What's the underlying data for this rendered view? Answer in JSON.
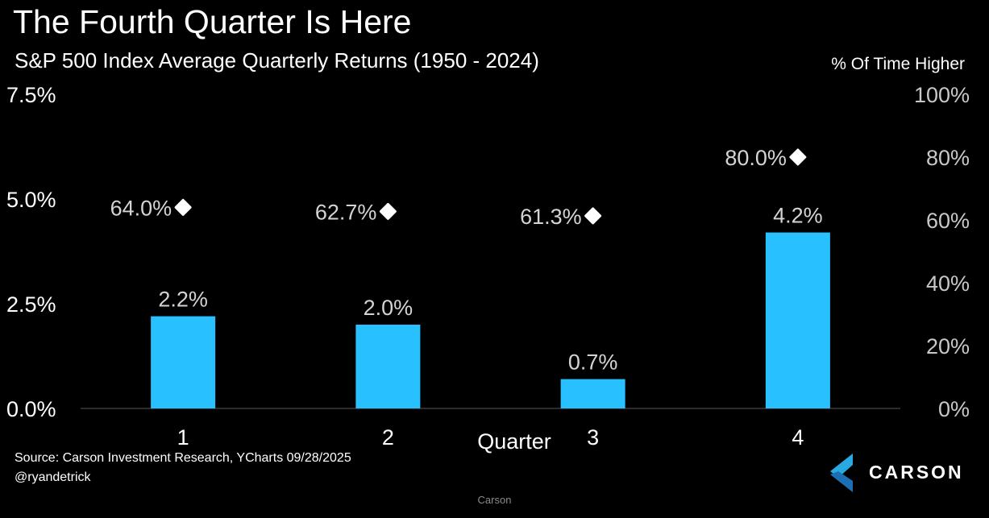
{
  "header": {
    "title": "The Fourth Quarter Is Here",
    "subtitle": "S&P 500 Index Average Quarterly Returns (1950 - 2024)"
  },
  "chart_data": {
    "type": "bar",
    "title": "The Fourth Quarter Is Here",
    "subtitle": "S&P 500 Index Average Quarterly Returns (1950 - 2024)",
    "xlabel": "Quarter",
    "categories": [
      "1",
      "2",
      "3",
      "4"
    ],
    "series": [
      {
        "values": [
          2.2,
          2.0,
          0.7,
          4.2
        ],
        "labels": [
          "2.2%",
          "2.0%",
          "0.7%",
          "4.2%"
        ],
        "axis": "left",
        "mark": "bar",
        "color": "#29c0ff"
      },
      {
        "values": [
          64.0,
          62.7,
          61.3,
          80.0
        ],
        "labels": [
          "64.0%",
          "62.7%",
          "61.3%",
          "80.0%"
        ],
        "axis": "right",
        "mark": "diamond",
        "color": "#ffffff"
      }
    ],
    "y_left": {
      "range": [
        0,
        7.5
      ],
      "ticks": [
        0,
        2.5,
        5.0,
        7.5
      ],
      "tick_labels": [
        "0.0%",
        "2.5%",
        "5.0%",
        "7.5%"
      ]
    },
    "y_right": {
      "label": "% Of Time Higher",
      "range": [
        0,
        100
      ],
      "ticks": [
        0,
        20,
        40,
        60,
        80,
        100
      ],
      "tick_labels": [
        "0%",
        "20%",
        "40%",
        "60%",
        "80%",
        "100%"
      ]
    },
    "grid": false,
    "legend": "none"
  },
  "footer": {
    "source": "Source: Carson Investment Research, YCharts 09/28/2025",
    "handle": "@ryandetrick",
    "center_text": "Carson"
  },
  "logo": {
    "text": "CARSON"
  },
  "colors": {
    "background": "#000000",
    "bar": "#29c0ff",
    "marker": "#ffffff",
    "axis_text_right": "#c8c8c8",
    "data_label": "#d4d4d4"
  }
}
